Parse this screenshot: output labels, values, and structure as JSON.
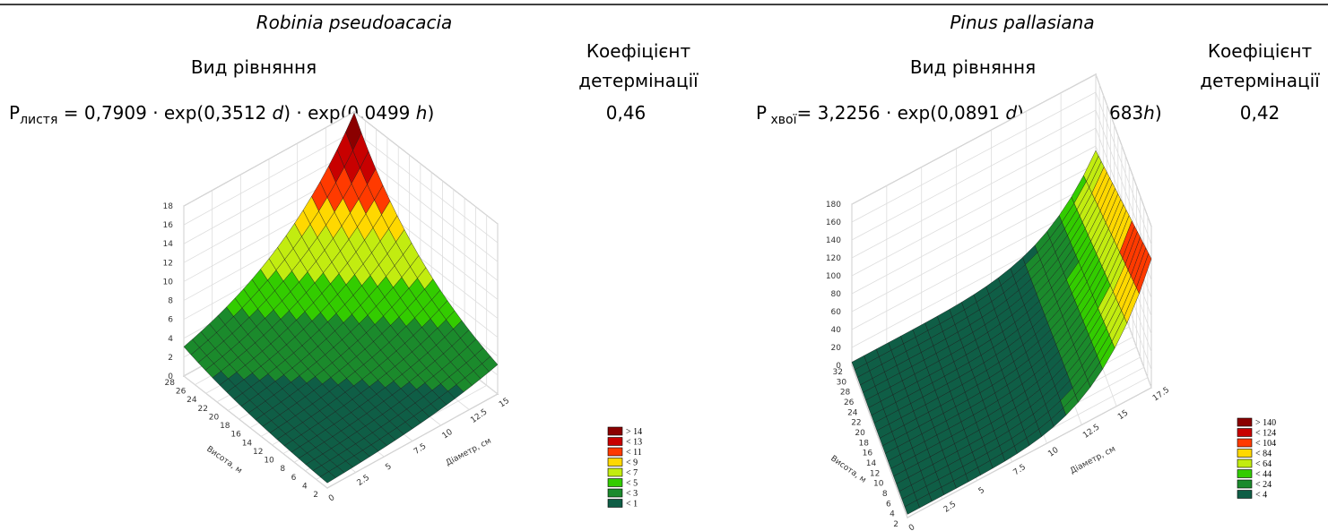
{
  "panels": [
    {
      "species": "Robinia pseudoacacia",
      "equation_heading": "Вид рівняння",
      "coef_heading": [
        "Коефіцієнт",
        "детермінації"
      ],
      "equation": {
        "symbol": "P",
        "subscript": "листя",
        "rest": " = 0,7909 · exp(0,3512 ",
        "d": "d",
        "mid": ") · exp(0,0499 ",
        "h": "h",
        "end": ")"
      },
      "coef": "0,46",
      "plot": {
        "zlim": [
          0,
          18
        ],
        "zticks": [
          0,
          2,
          4,
          6,
          8,
          10,
          12,
          14,
          16,
          18
        ],
        "hlim": [
          2,
          28
        ],
        "hticks": [
          2,
          4,
          6,
          8,
          10,
          12,
          14,
          16,
          18,
          20,
          22,
          24,
          26,
          28
        ],
        "dlim": [
          0,
          15
        ],
        "dticks": [
          0,
          2.5,
          5,
          7.5,
          10,
          12.5,
          15
        ],
        "d_label": "Діаметр, см",
        "h_label": "Висота, м",
        "legend": [
          {
            "label": "> 14",
            "color": "#8b0000"
          },
          {
            "label": "< 13",
            "color": "#c80000"
          },
          {
            "label": "< 11",
            "color": "#ff3a00"
          },
          {
            "label": "< 9",
            "color": "#ffd800"
          },
          {
            "label": "< 7",
            "color": "#c2ec10"
          },
          {
            "label": "< 5",
            "color": "#33cc00"
          },
          {
            "label": "< 3",
            "color": "#1b8a2c"
          },
          {
            "label": "< 1",
            "color": "#0f5e46"
          }
        ]
      }
    },
    {
      "species": "Pinus pallasiana",
      "equation_heading": "Вид рівняння",
      "coef_heading": [
        "Коефіцієнт",
        "детермінації"
      ],
      "equation": {
        "symbol": "P",
        "subscript": " хвої",
        "rest": "= 3,2256 · exp(0,0891 ",
        "d": "d",
        "mid": ") · exp(0,0683",
        "h": "h",
        "end": ")"
      },
      "coef": "0,42",
      "plot": {
        "zlim": [
          0,
          180
        ],
        "zticks": [
          0,
          20,
          40,
          60,
          80,
          100,
          120,
          140,
          160,
          180
        ],
        "hlim": [
          2,
          32
        ],
        "hticks": [
          2,
          4,
          6,
          8,
          10,
          12,
          14,
          16,
          18,
          20,
          22,
          24,
          26,
          28,
          30,
          32
        ],
        "dlim": [
          0,
          17.5
        ],
        "dticks": [
          0,
          2.5,
          5,
          7.5,
          10,
          12.5,
          15,
          17.5
        ],
        "d_label": "Діаметр, см",
        "h_label": "Висота, м",
        "legend": [
          {
            "label": "> 140",
            "color": "#8b0000"
          },
          {
            "label": "< 124",
            "color": "#c80000"
          },
          {
            "label": "< 104",
            "color": "#ff3a00"
          },
          {
            "label": "< 84",
            "color": "#ffd800"
          },
          {
            "label": "< 64",
            "color": "#c2ec10"
          },
          {
            "label": "< 44",
            "color": "#33cc00"
          },
          {
            "label": "< 24",
            "color": "#1b8a2c"
          },
          {
            "label": "< 4",
            "color": "#0f5e46"
          }
        ]
      }
    }
  ]
}
